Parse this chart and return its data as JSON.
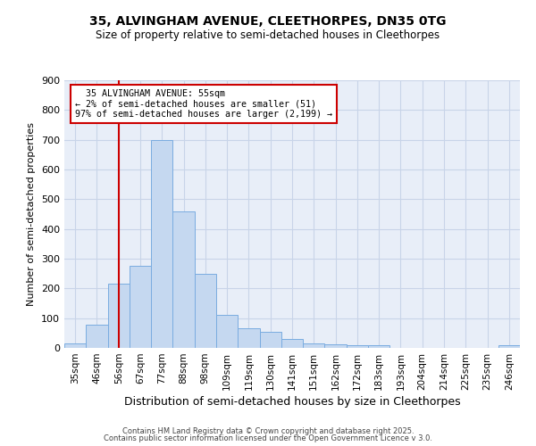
{
  "title1": "35, ALVINGHAM AVENUE, CLEETHORPES, DN35 0TG",
  "title2": "Size of property relative to semi-detached houses in Cleethorpes",
  "xlabel": "Distribution of semi-detached houses by size in Cleethorpes",
  "ylabel": "Number of semi-detached properties",
  "bin_labels": [
    "35sqm",
    "46sqm",
    "56sqm",
    "67sqm",
    "77sqm",
    "88sqm",
    "98sqm",
    "109sqm",
    "119sqm",
    "130sqm",
    "141sqm",
    "151sqm",
    "162sqm",
    "172sqm",
    "183sqm",
    "193sqm",
    "204sqm",
    "214sqm",
    "225sqm",
    "235sqm",
    "246sqm"
  ],
  "bin_values": [
    15,
    78,
    215,
    275,
    700,
    460,
    248,
    110,
    65,
    53,
    30,
    15,
    12,
    10,
    10,
    0,
    0,
    0,
    0,
    0,
    8
  ],
  "bar_color": "#c5d8f0",
  "bar_edge_color": "#7aace0",
  "property_label": "35 ALVINGHAM AVENUE: 55sqm",
  "smaller_pct": "2%",
  "smaller_count": 51,
  "larger_pct": "97%",
  "larger_count": 2199,
  "vline_x_index": 2,
  "vline_color": "#cc0000",
  "annotation_box_color": "#cc0000",
  "grid_color": "#c8d4e8",
  "bg_color": "#e8eef8",
  "footer1": "Contains HM Land Registry data © Crown copyright and database right 2025.",
  "footer2": "Contains public sector information licensed under the Open Government Licence v 3.0.",
  "ylim": [
    0,
    900
  ],
  "yticks": [
    0,
    100,
    200,
    300,
    400,
    500,
    600,
    700,
    800,
    900
  ]
}
